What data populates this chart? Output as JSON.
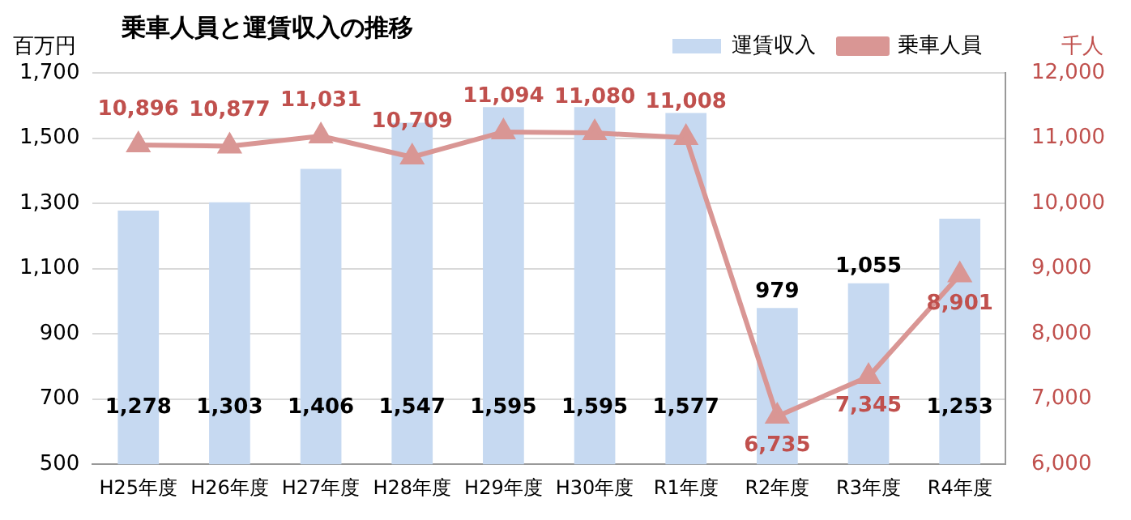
{
  "chart_data": {
    "type": "bar",
    "title": "乗車人員と運賃収入の推移",
    "ylabel": "百万円",
    "y2label": "千人",
    "categories": [
      "H25年度",
      "H26年度",
      "H27年度",
      "H28年度",
      "H29年度",
      "H30年度",
      "R1年度",
      "R2年度",
      "R3年度",
      "R4年度"
    ],
    "series": [
      {
        "name": "運賃収入",
        "color": "#c6d9f1",
        "values": [
          1278,
          1303,
          1406,
          1547,
          1595,
          1595,
          1577,
          979,
          1055,
          1253
        ],
        "value_labels": [
          "1,278",
          "1,303",
          "1,406",
          "1,547",
          "1,595",
          "1,595",
          "1,577",
          "979",
          "1,055",
          "1,253"
        ]
      },
      {
        "name": "乗車人員",
        "type": "line",
        "axis": "y2",
        "color": "#d99694",
        "marker": "triangle",
        "values": [
          10896,
          10877,
          11031,
          10709,
          11094,
          11080,
          11008,
          6735,
          7345,
          8901
        ],
        "value_labels": [
          "10,896",
          "10,877",
          "11,031",
          "10,709",
          "11,094",
          "11,080",
          "11,008",
          "6,735",
          "7,345",
          "8,901"
        ]
      }
    ],
    "ylim": [
      500,
      1700
    ],
    "yticks": [
      {
        "value": 500,
        "label": "500"
      },
      {
        "value": 700,
        "label": "700"
      },
      {
        "value": 900,
        "label": "900"
      },
      {
        "value": 1100,
        "label": "1,100"
      },
      {
        "value": 1300,
        "label": "1,300"
      },
      {
        "value": 1500,
        "label": "1,500"
      },
      {
        "value": 1700,
        "label": "1,700"
      }
    ],
    "y2lim": [
      6000,
      12000
    ],
    "y2ticks": [
      {
        "value": 6000,
        "label": "6,000"
      },
      {
        "value": 7000,
        "label": "7,000"
      },
      {
        "value": 8000,
        "label": "8,000"
      },
      {
        "value": 9000,
        "label": "9,000"
      },
      {
        "value": 10000,
        "label": "10,000"
      },
      {
        "value": 11000,
        "label": "11,000"
      },
      {
        "value": 12000,
        "label": "12,000"
      }
    ],
    "grid": "y",
    "legend": "top right"
  }
}
